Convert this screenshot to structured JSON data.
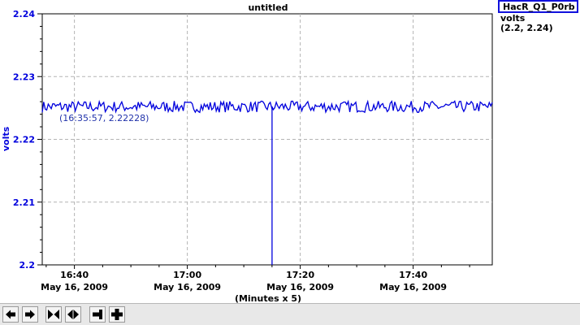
{
  "chart_data": {
    "type": "line",
    "title": "untitled",
    "ylabel": "volts",
    "xlabel": "(Minutes x 5)",
    "ylim": [
      2.2,
      2.24
    ],
    "y_ticks": [
      "2.24",
      "2.23",
      "2.22",
      "2.21",
      "2.2"
    ],
    "x_ticks": [
      {
        "time": "16:40",
        "date": "May 16, 2009"
      },
      {
        "time": "17:00",
        "date": "May 16, 2009"
      },
      {
        "time": "17:20",
        "date": "May 16, 2009"
      },
      {
        "time": "17:40",
        "date": "May 16, 2009"
      }
    ],
    "series": [
      {
        "name": "HacR_Q1_P0rb",
        "unit": "volts",
        "range": "(2.2, 2.24)",
        "color": "#0000dd",
        "mean": 2.2252,
        "noise_amplitude": 0.0009,
        "dip": {
          "time": "17:15",
          "value": 2.2
        }
      }
    ],
    "cursor_annotation": "(16:35:57, 2.22228)",
    "grid": true,
    "legend": "top-right"
  },
  "toolbar": {
    "buttons": [
      {
        "name": "pan-left-button",
        "icon": "arrow-left-icon"
      },
      {
        "name": "pan-right-button",
        "icon": "arrow-right-icon"
      },
      {
        "name": "zoom-in-x-button",
        "icon": "arrows-inward-icon"
      },
      {
        "name": "zoom-out-x-button",
        "icon": "arrows-outward-icon"
      },
      {
        "name": "zoom-out-y-button",
        "icon": "minus-icon"
      },
      {
        "name": "zoom-in-y-button",
        "icon": "plus-icon"
      }
    ]
  }
}
